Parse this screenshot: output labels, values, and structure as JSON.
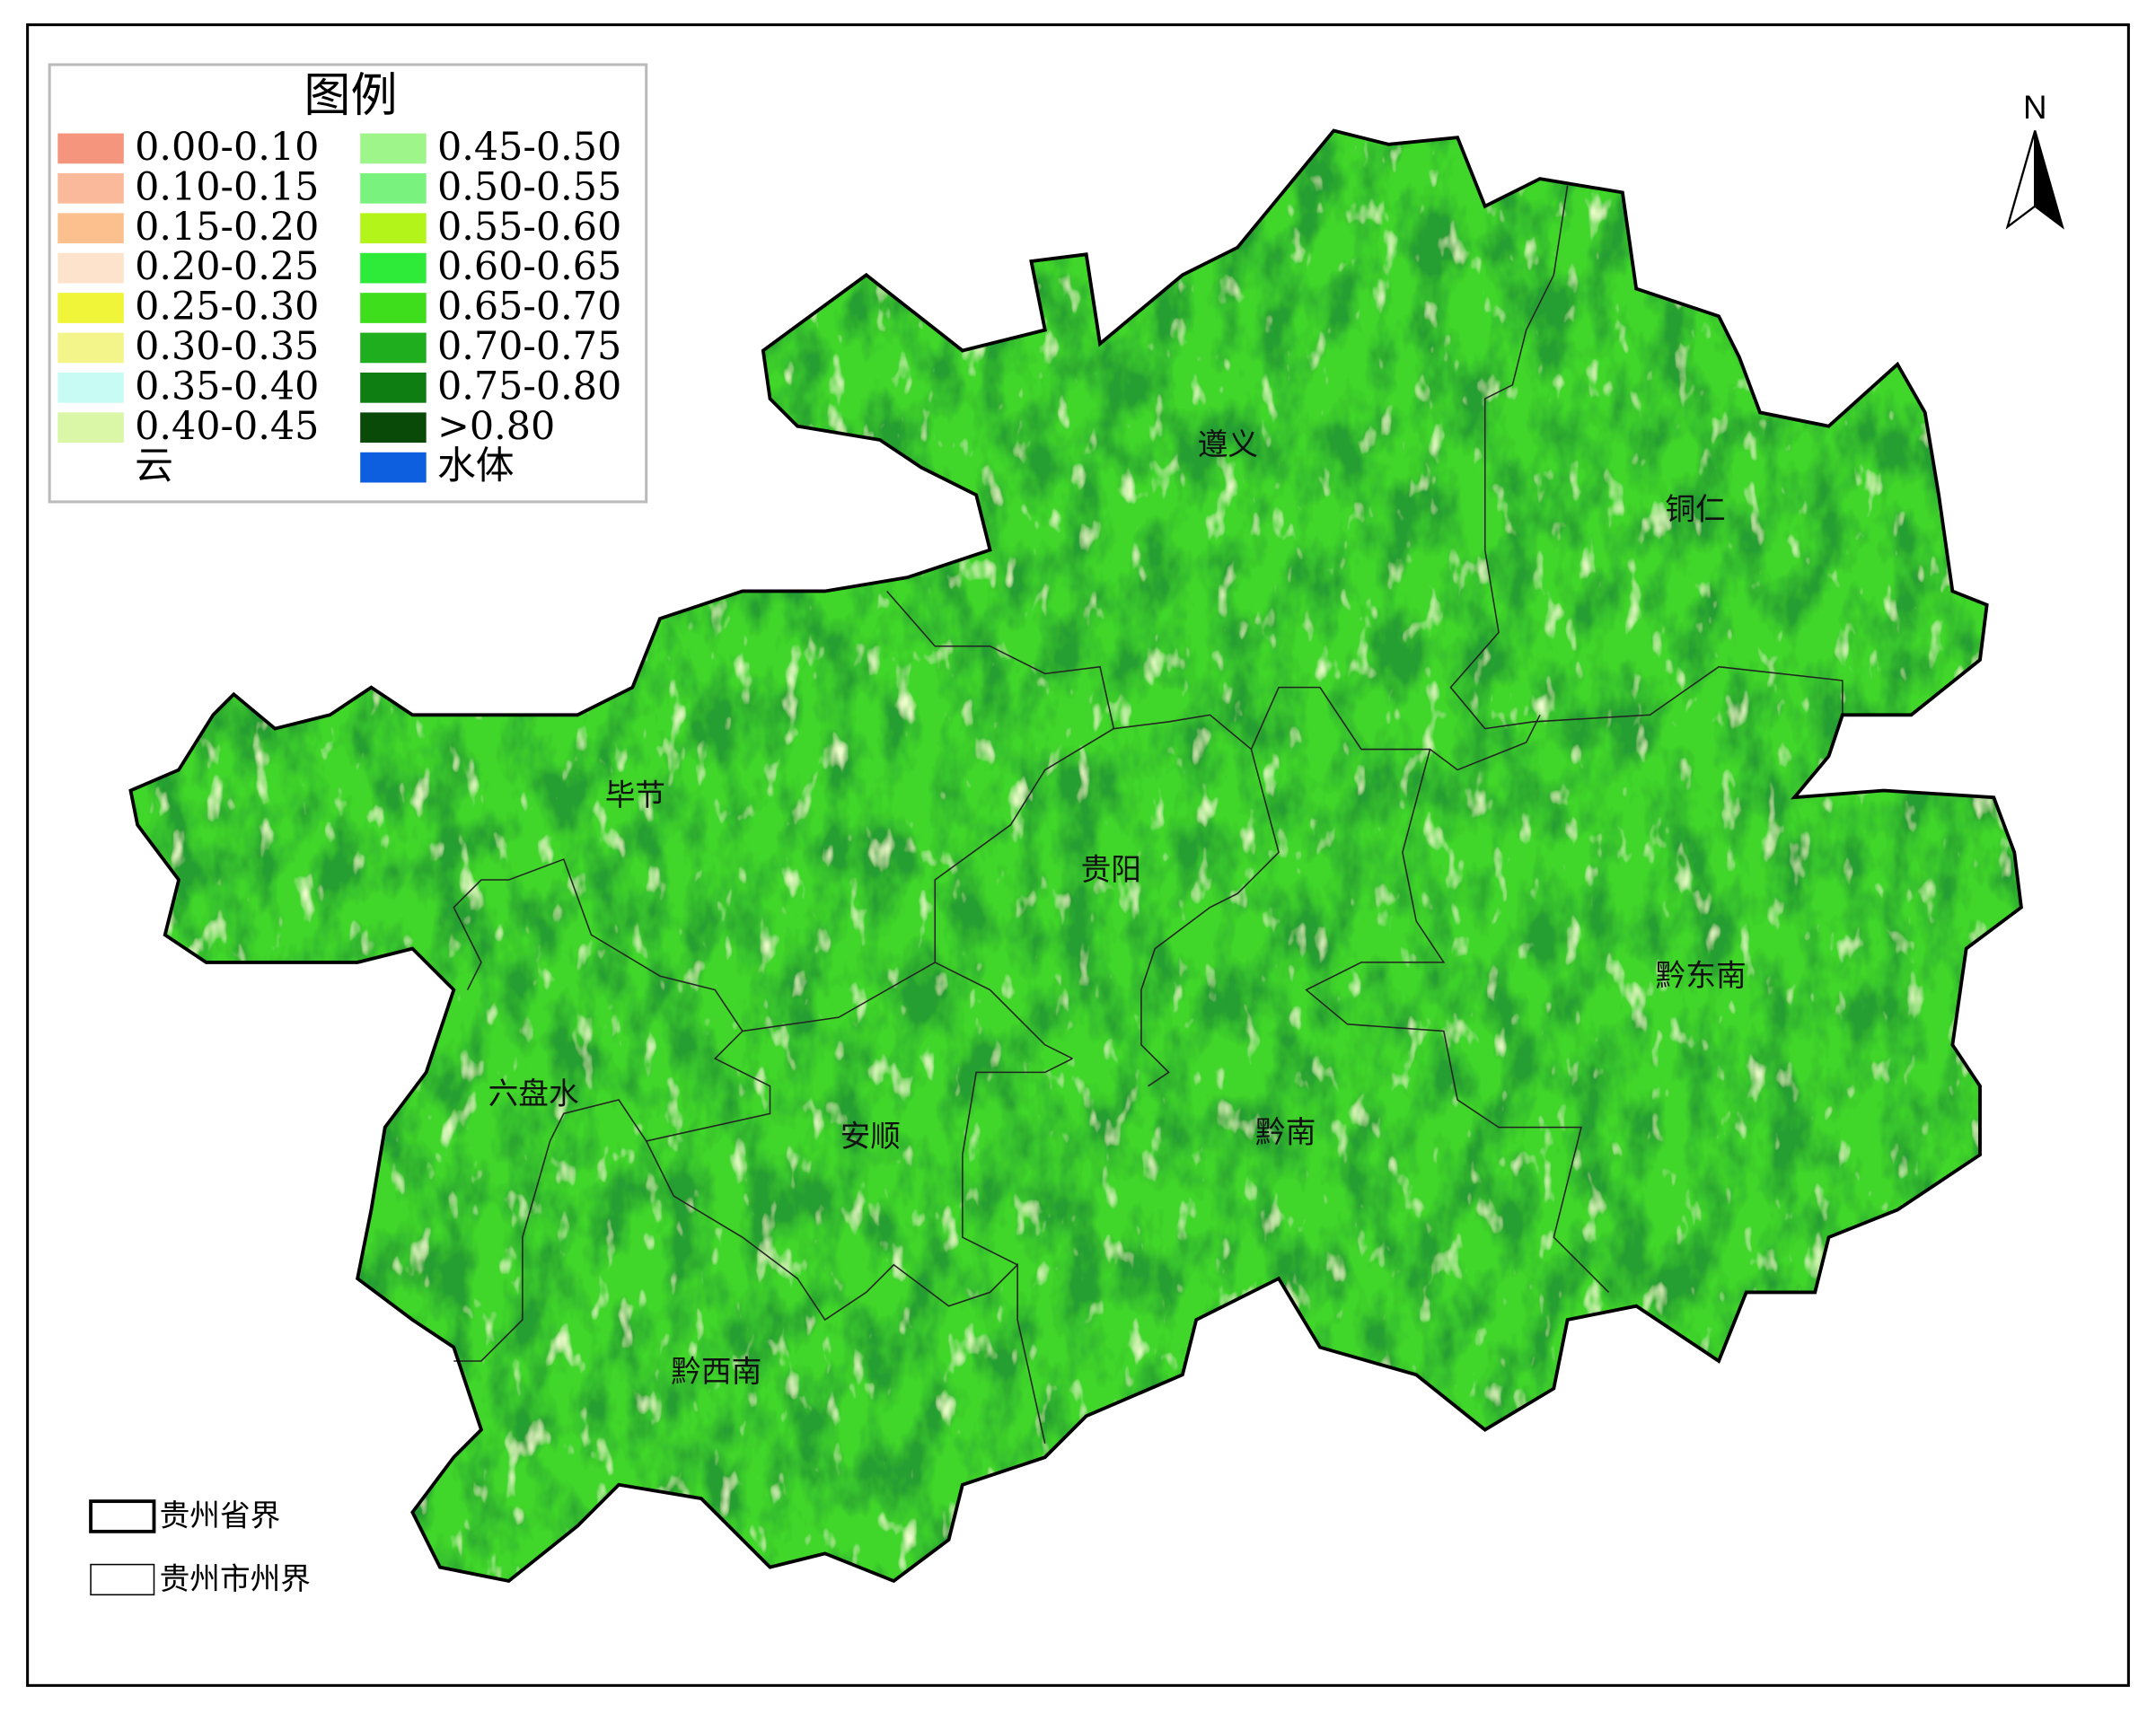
{
  "legend": {
    "title": "图例",
    "items": [
      {
        "label": "0.00-0.10",
        "color": "#f5957e"
      },
      {
        "label": "0.10-0.15",
        "color": "#fbb99c"
      },
      {
        "label": "0.15-0.20",
        "color": "#fcc08e"
      },
      {
        "label": "0.20-0.25",
        "color": "#fde3cc"
      },
      {
        "label": "0.25-0.30",
        "color": "#f0f53a"
      },
      {
        "label": "0.30-0.35",
        "color": "#f3f58a"
      },
      {
        "label": "0.35-0.40",
        "color": "#c8fbf3"
      },
      {
        "label": "0.40-0.45",
        "color": "#d9f7a7"
      },
      {
        "label": "云",
        "color": "#ffffff"
      },
      {
        "label": "0.45-0.50",
        "color": "#9ef58a"
      },
      {
        "label": "0.50-0.55",
        "color": "#7af27e"
      },
      {
        "label": "0.55-0.60",
        "color": "#b3f51a"
      },
      {
        "label": "0.60-0.65",
        "color": "#2eeb3a"
      },
      {
        "label": "0.65-0.70",
        "color": "#3ede1c"
      },
      {
        "label": "0.70-0.75",
        "color": "#1eae1e"
      },
      {
        "label": "0.75-0.80",
        "color": "#0e7d12"
      },
      {
        "label": ">0.80",
        "color": "#0a4a08"
      },
      {
        "label": "水体",
        "color": "#0d5fe0"
      }
    ]
  },
  "regions": [
    "遵义",
    "铜仁",
    "毕节",
    "贵阳",
    "黔东南",
    "六盘水",
    "安顺",
    "黔南",
    "黔西南"
  ],
  "boundary_legend": [
    "贵州省界",
    "贵州市州界"
  ],
  "north": "N"
}
